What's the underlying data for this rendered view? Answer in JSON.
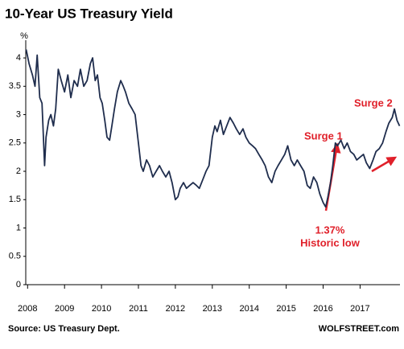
{
  "chart_data": {
    "type": "line",
    "title": "10-Year US Treasury Yield",
    "y_label": "%",
    "x": [
      2007.96,
      2008.04,
      2008.13,
      2008.2,
      2008.26,
      2008.33,
      2008.39,
      2008.46,
      2008.5,
      2008.57,
      2008.63,
      2008.7,
      2008.76,
      2008.83,
      2008.91,
      2009.0,
      2009.09,
      2009.17,
      2009.26,
      2009.35,
      2009.43,
      2009.52,
      2009.61,
      2009.7,
      2009.76,
      2009.83,
      2009.89,
      2009.96,
      2010.02,
      2010.09,
      2010.15,
      2010.22,
      2010.28,
      2010.35,
      2010.43,
      2010.52,
      2010.59,
      2010.65,
      2010.74,
      2010.83,
      2010.91,
      2011.0,
      2011.07,
      2011.13,
      2011.22,
      2011.3,
      2011.39,
      2011.48,
      2011.57,
      2011.65,
      2011.74,
      2011.83,
      2011.91,
      2012.0,
      2012.07,
      2012.13,
      2012.22,
      2012.3,
      2012.39,
      2012.48,
      2012.57,
      2012.65,
      2012.74,
      2012.83,
      2012.91,
      2013.0,
      2013.07,
      2013.13,
      2013.22,
      2013.3,
      2013.39,
      2013.48,
      2013.57,
      2013.65,
      2013.74,
      2013.83,
      2013.91,
      2014.0,
      2014.09,
      2014.17,
      2014.26,
      2014.35,
      2014.43,
      2014.52,
      2014.61,
      2014.7,
      2014.78,
      2014.87,
      2014.96,
      2015.04,
      2015.13,
      2015.22,
      2015.3,
      2015.39,
      2015.48,
      2015.57,
      2015.65,
      2015.74,
      2015.83,
      2015.91,
      2016.0,
      2016.07,
      2016.13,
      2016.2,
      2016.26,
      2016.33,
      2016.39,
      2016.48,
      2016.57,
      2016.65,
      2016.74,
      2016.83,
      2016.91,
      2017.0,
      2017.09,
      2017.17,
      2017.26,
      2017.35,
      2017.43,
      2017.52,
      2017.61,
      2017.7,
      2017.78,
      2017.87,
      2017.93,
      2018.0,
      2018.07
    ],
    "values": [
      4.15,
      3.9,
      3.7,
      3.5,
      4.05,
      3.3,
      3.2,
      2.1,
      2.6,
      2.9,
      3.0,
      2.8,
      3.1,
      3.8,
      3.6,
      3.4,
      3.7,
      3.3,
      3.6,
      3.5,
      3.8,
      3.5,
      3.6,
      3.9,
      4.0,
      3.6,
      3.7,
      3.3,
      3.2,
      2.9,
      2.6,
      2.55,
      2.8,
      3.1,
      3.4,
      3.6,
      3.5,
      3.4,
      3.2,
      3.1,
      3.0,
      2.5,
      2.1,
      2.0,
      2.2,
      2.1,
      1.9,
      2.0,
      2.1,
      2.0,
      1.9,
      2.0,
      1.8,
      1.5,
      1.55,
      1.7,
      1.8,
      1.7,
      1.75,
      1.8,
      1.75,
      1.7,
      1.85,
      2.0,
      2.1,
      2.6,
      2.8,
      2.7,
      2.9,
      2.65,
      2.8,
      2.95,
      2.85,
      2.75,
      2.65,
      2.75,
      2.6,
      2.5,
      2.45,
      2.4,
      2.3,
      2.2,
      2.1,
      1.9,
      1.8,
      2.0,
      2.1,
      2.2,
      2.3,
      2.45,
      2.2,
      2.1,
      2.2,
      2.1,
      2.0,
      1.75,
      1.7,
      1.9,
      1.8,
      1.6,
      1.45,
      1.37,
      1.55,
      1.8,
      2.1,
      2.5,
      2.45,
      2.55,
      2.4,
      2.5,
      2.35,
      2.3,
      2.2,
      2.25,
      2.3,
      2.15,
      2.05,
      2.2,
      2.35,
      2.4,
      2.5,
      2.7,
      2.85,
      2.95,
      3.1,
      2.9,
      2.8
    ],
    "color": "#1f2d4d",
    "xlim": [
      2007.95,
      2018.08
    ],
    "xticks": [
      2008,
      2009,
      2010,
      2011,
      2012,
      2013,
      2014,
      2015,
      2016,
      2017
    ],
    "ylim": [
      0,
      4.3
    ],
    "yticks": [
      0,
      0.5,
      1,
      1.5,
      2,
      2.5,
      3,
      3.5,
      4
    ],
    "annotations": [
      "Surge 1",
      "Surge 2",
      "1.37%",
      "Historic low"
    ],
    "source": "Source: US Treasury Dept.",
    "credit": "WOLFSTREET.com"
  }
}
